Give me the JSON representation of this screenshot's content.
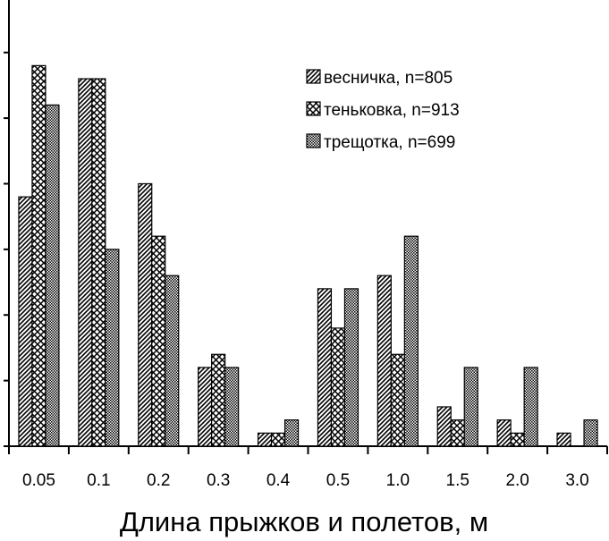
{
  "chart_data": {
    "type": "bar",
    "title": "",
    "xlabel": "Длина прыжков и полетов, м",
    "ylabel": "",
    "categories": [
      "0.05",
      "0.1",
      "0.2",
      "0.3",
      "0.4",
      "0.5",
      "1.0",
      "1.5",
      "2.0",
      "3.0"
    ],
    "series": [
      {
        "name": "весничка, n=805",
        "pattern": "diagonal-hatch",
        "values": [
          19,
          28,
          20,
          6,
          1,
          12,
          13,
          3,
          2,
          1
        ]
      },
      {
        "name": "тенькoвка, n=913",
        "pattern": "cross-hatch",
        "values": [
          29,
          28,
          16,
          7,
          1,
          9,
          7,
          2,
          1,
          0
        ]
      },
      {
        "name": "трещотка, n=699",
        "pattern": "dotted",
        "values": [
          26,
          15,
          13,
          6,
          2,
          12,
          16,
          6,
          6,
          2
        ]
      }
    ],
    "ylim": [
      0,
      34
    ],
    "ytick_step": 5,
    "y_tick_labels_shown": false,
    "grid": false,
    "legend_position": "top-right",
    "colors": {
      "ink": "#000000",
      "background": "#ffffff"
    }
  }
}
